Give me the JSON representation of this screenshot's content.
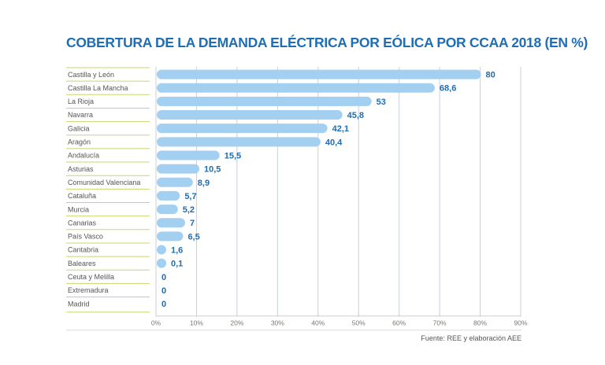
{
  "chart_data": {
    "type": "bar",
    "orientation": "horizontal",
    "title": "COBERTURA DE LA DEMANDA ELÉCTRICA POR EÓLICA POR CCAA 2018 (EN %)",
    "categories": [
      "Castilla y León",
      "Castilla La Mancha",
      "La Rioja",
      "Navarra",
      "Galicia",
      "Aragón",
      "Andalucía",
      "Asturias",
      "Comunidad Valenciana",
      "Cataluña",
      "Murcia",
      "Canarias",
      "País Vasco",
      "Cantabria",
      "Baleares",
      "Ceuta y Melilla",
      "Extremadura",
      "Madrid"
    ],
    "values": [
      80,
      68.6,
      53,
      45.8,
      42.1,
      40.4,
      15.5,
      10.5,
      8.9,
      5.7,
      5.2,
      7,
      6.5,
      1.6,
      0.1,
      0,
      0,
      0
    ],
    "value_labels": [
      "80",
      "68,6",
      "53",
      "45,8",
      "42,1",
      "40,4",
      "15,5",
      "10,5",
      "8,9",
      "5,7",
      "5,2",
      "7",
      "6,5",
      "1,6",
      "0,1",
      "0",
      "0",
      "0"
    ],
    "xlabel": "",
    "ylabel": "",
    "xlim": [
      0,
      90
    ],
    "xticks": [
      0,
      10,
      20,
      30,
      40,
      50,
      60,
      70,
      80,
      90
    ],
    "xtick_labels": [
      "0%",
      "10%",
      "20%",
      "30%",
      "40%",
      "50%",
      "60%",
      "70%",
      "80%",
      "90%"
    ],
    "grid": true,
    "legend": "none",
    "colors": {
      "bar": "#a3cff0",
      "value_text": "#1f6db3",
      "title": "#1f6db3",
      "row_rule": "#c5d86d",
      "grid": "#c8d0da"
    }
  },
  "source": "Fuente: REE y elaboración AEE"
}
